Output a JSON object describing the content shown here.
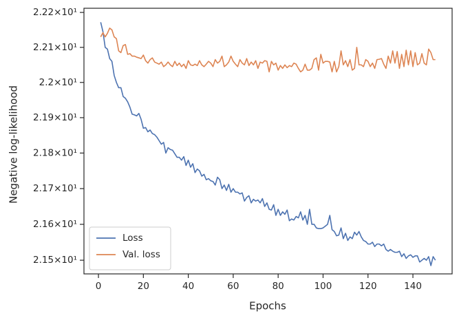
{
  "chart_data": {
    "type": "line",
    "xlabel": "Epochs",
    "ylabel": "Negative log-likelihood",
    "log_y": true,
    "legend": "lower left",
    "xlim": [
      -6.45,
      157.45
    ],
    "xticks": [
      0,
      20,
      40,
      60,
      80,
      100,
      120,
      140
    ],
    "ylim": [
      21.462,
      22.212
    ],
    "yticks": [
      {
        "value": 21.5,
        "label": "2.15×10¹"
      },
      {
        "value": 21.6,
        "label": "2.16×10¹"
      },
      {
        "value": 21.7,
        "label": "2.17×10¹"
      },
      {
        "value": 21.8,
        "label": "2.18×10¹"
      },
      {
        "value": 21.9,
        "label": "2.19×10¹"
      },
      {
        "value": 22.0,
        "label": "2.2×10¹"
      },
      {
        "value": 22.1,
        "label": "2.21×10¹"
      },
      {
        "value": 22.2,
        "label": "2.22×10¹"
      }
    ],
    "x": [
      1,
      2,
      3,
      4,
      5,
      6,
      7,
      8,
      9,
      10,
      11,
      12,
      13,
      14,
      15,
      16,
      17,
      18,
      19,
      20,
      21,
      22,
      23,
      24,
      25,
      26,
      27,
      28,
      29,
      30,
      31,
      32,
      33,
      34,
      35,
      36,
      37,
      38,
      39,
      40,
      41,
      42,
      43,
      44,
      45,
      46,
      47,
      48,
      49,
      50,
      51,
      52,
      53,
      54,
      55,
      56,
      57,
      58,
      59,
      60,
      61,
      62,
      63,
      64,
      65,
      66,
      67,
      68,
      69,
      70,
      71,
      72,
      73,
      74,
      75,
      76,
      77,
      78,
      79,
      80,
      81,
      82,
      83,
      84,
      85,
      86,
      87,
      88,
      89,
      90,
      91,
      92,
      93,
      94,
      95,
      96,
      97,
      98,
      99,
      100,
      101,
      102,
      103,
      104,
      105,
      106,
      107,
      108,
      109,
      110,
      111,
      112,
      113,
      114,
      115,
      116,
      117,
      118,
      119,
      120,
      121,
      122,
      123,
      124,
      125,
      126,
      127,
      128,
      129,
      130,
      131,
      132,
      133,
      134,
      135,
      136,
      137,
      138,
      139,
      140,
      141,
      142,
      143,
      144,
      145,
      146,
      147,
      148,
      149,
      150
    ],
    "series": [
      {
        "name": "Loss",
        "color": "#4c72b0",
        "values": [
          22.172,
          22.145,
          22.1,
          22.095,
          22.068,
          22.06,
          22.02,
          22.0,
          21.985,
          21.985,
          21.96,
          21.955,
          21.945,
          21.93,
          21.91,
          21.908,
          21.905,
          21.912,
          21.895,
          21.87,
          21.872,
          21.86,
          21.865,
          21.855,
          21.852,
          21.845,
          21.835,
          21.825,
          21.83,
          21.8,
          21.815,
          21.81,
          21.808,
          21.798,
          21.788,
          21.788,
          21.78,
          21.79,
          21.765,
          21.78,
          21.76,
          21.77,
          21.745,
          21.755,
          21.75,
          21.735,
          21.74,
          21.725,
          21.728,
          21.722,
          21.72,
          21.71,
          21.732,
          21.725,
          21.7,
          21.71,
          21.695,
          21.712,
          21.69,
          21.7,
          21.69,
          21.69,
          21.685,
          21.688,
          21.665,
          21.675,
          21.68,
          21.66,
          21.67,
          21.665,
          21.668,
          21.66,
          21.672,
          21.65,
          21.66,
          21.642,
          21.64,
          21.655,
          21.625,
          21.642,
          21.625,
          21.635,
          21.628,
          21.64,
          21.61,
          21.615,
          21.612,
          21.622,
          21.618,
          21.635,
          21.612,
          21.625,
          21.6,
          21.642,
          21.6,
          21.6,
          21.59,
          21.588,
          21.588,
          21.59,
          21.595,
          21.6,
          21.625,
          21.585,
          21.58,
          21.568,
          21.57,
          21.59,
          21.56,
          21.575,
          21.555,
          21.565,
          21.56,
          21.578,
          21.57,
          21.58,
          21.565,
          21.555,
          21.552,
          21.545,
          21.545,
          21.55,
          21.538,
          21.545,
          21.545,
          21.54,
          21.545,
          21.53,
          21.525,
          21.53,
          21.525,
          21.522,
          21.522,
          21.525,
          21.51,
          21.518,
          21.505,
          21.512,
          21.515,
          21.508,
          21.512,
          21.512,
          21.495,
          21.5,
          21.505,
          21.5,
          21.51,
          21.485,
          21.51,
          21.5
        ]
      },
      {
        "name": "Val. loss",
        "color": "#dd8452",
        "values": [
          22.13,
          22.142,
          22.13,
          22.14,
          22.155,
          22.15,
          22.13,
          22.125,
          22.09,
          22.085,
          22.105,
          22.108,
          22.08,
          22.082,
          22.075,
          22.075,
          22.072,
          22.07,
          22.068,
          22.078,
          22.062,
          22.055,
          22.065,
          22.07,
          22.058,
          22.055,
          22.052,
          22.058,
          22.045,
          22.05,
          22.058,
          22.05,
          22.045,
          22.06,
          22.048,
          22.055,
          22.045,
          22.052,
          22.04,
          22.062,
          22.05,
          22.048,
          22.052,
          22.048,
          22.062,
          22.05,
          22.045,
          22.052,
          22.06,
          22.055,
          22.045,
          22.065,
          22.055,
          22.06,
          22.075,
          22.045,
          22.05,
          22.058,
          22.075,
          22.06,
          22.052,
          22.045,
          22.065,
          22.055,
          22.05,
          22.068,
          22.048,
          22.058,
          22.05,
          22.062,
          22.04,
          22.058,
          22.055,
          22.062,
          22.06,
          22.03,
          22.06,
          22.05,
          22.055,
          22.035,
          22.048,
          22.04,
          22.05,
          22.042,
          22.048,
          22.045,
          22.055,
          22.052,
          22.04,
          22.03,
          22.035,
          22.052,
          22.035,
          22.035,
          22.04,
          22.065,
          22.07,
          22.035,
          22.08,
          22.055,
          22.06,
          22.06,
          22.058,
          22.03,
          22.06,
          22.03,
          22.045,
          22.09,
          22.05,
          22.062,
          22.045,
          22.065,
          22.035,
          22.04,
          22.1,
          22.05,
          22.05,
          22.045,
          22.065,
          22.06,
          22.045,
          22.055,
          22.04,
          22.065,
          22.066,
          22.068,
          22.052,
          22.04,
          22.075,
          22.055,
          22.09,
          22.055,
          22.088,
          22.04,
          22.08,
          22.045,
          22.092,
          22.05,
          22.09,
          22.045,
          22.085,
          22.05,
          22.055,
          22.082,
          22.055,
          22.05,
          22.095,
          22.085,
          22.065,
          22.065
        ]
      }
    ]
  }
}
